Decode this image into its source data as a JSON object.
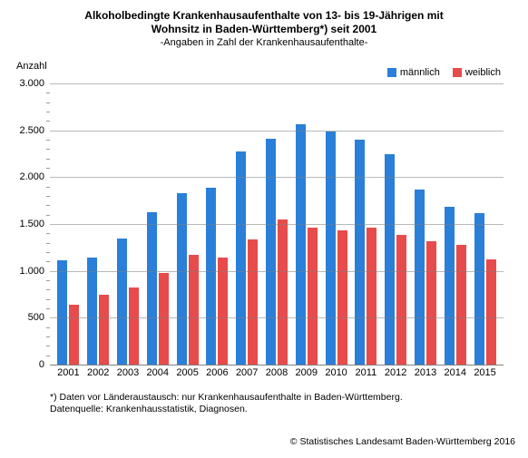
{
  "title_line1": "Alkoholbedingte Krankenhausaufenthalte von 13- bis 19-Jährigen mit",
  "title_line2": "Wohnsitz in Baden-Württemberg*) seit 2001",
  "subtitle": "-Angaben in Zahl der Krankenhausaufenthalte-",
  "ylabel": "Anzahl",
  "legend": {
    "male": "männlich",
    "female": "weiblich"
  },
  "footnote_line1": "*) Daten vor Länderaustausch: nur Krankenhausaufenthalte in Baden-Württemberg.",
  "footnote_line2": "Datenquelle: Krankenhausstatistik, Diagnosen.",
  "copyright": "© Statistisches Landesamt Baden-Württemberg 2016",
  "chart": {
    "type": "bar",
    "ylim": [
      0,
      3000
    ],
    "ytick_step": 500,
    "yminor_step": 100,
    "ytick_labels": [
      "0",
      "500",
      "1.000",
      "1.500",
      "2.000",
      "2.500",
      "3.000"
    ],
    "grid_color": "#808080",
    "background_color": "#ffffff",
    "male_color": "#2a7fd8",
    "female_color": "#e84b4b",
    "years": [
      "2001",
      "2002",
      "2003",
      "2004",
      "2005",
      "2006",
      "2007",
      "2008",
      "2009",
      "2010",
      "2011",
      "2012",
      "2013",
      "2014",
      "2015"
    ],
    "male": [
      1110,
      1140,
      1350,
      1630,
      1830,
      1890,
      2270,
      2410,
      2560,
      2490,
      2400,
      2250,
      1870,
      1680,
      1620
    ],
    "female": [
      640,
      750,
      820,
      980,
      1170,
      1140,
      1340,
      1550,
      1460,
      1430,
      1460,
      1380,
      1320,
      1280,
      1120
    ]
  }
}
